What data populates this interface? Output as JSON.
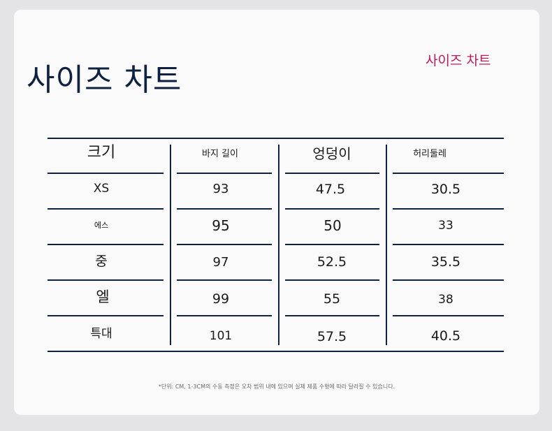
{
  "title": "사이즈 차트",
  "subtitle": "사이즈 차트",
  "table": {
    "headers": [
      "크기",
      "바지 길이",
      "엉덩이",
      "허리둘레"
    ],
    "rows": [
      [
        "XS",
        "93",
        "47.5",
        "30.5"
      ],
      [
        "에스",
        "95",
        "50",
        "33"
      ],
      [
        "중",
        "97",
        "52.5",
        "35.5"
      ],
      [
        "엘",
        "99",
        "55",
        "38"
      ],
      [
        "특대",
        "101",
        "57.5",
        "40.5"
      ]
    ]
  },
  "footnote": "*단위: CM, 1-3CM의 수동 측정은 오차 범위 내에 있으며 실제 제품 수형에 따라 달라질 수 있습니다."
}
